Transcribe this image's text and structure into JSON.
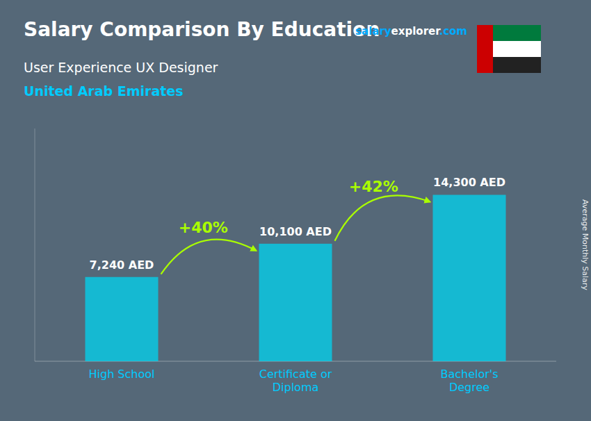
{
  "chart_data": {
    "type": "bar",
    "title": "Salary Comparison By Education",
    "subtitle": [
      "User Experience UX Designer",
      "United Arab Emirates"
    ],
    "ylabel": "Average Monthly Salary",
    "categories": [
      "High School",
      "Certificate or\nDiploma",
      "Bachelor's\nDegree"
    ],
    "values": [
      7240,
      10100,
      14300
    ],
    "value_labels": [
      "7,240 AED",
      "10,100 AED",
      "14,300 AED"
    ],
    "data_labels": true,
    "annotations": [
      "+40%",
      "+42%"
    ],
    "source": [
      "salary",
      "explorer",
      ".com"
    ],
    "color": "#00d4f0",
    "ylim": [
      0,
      20000
    ],
    "tick_labels": "x",
    "grid": false
  }
}
